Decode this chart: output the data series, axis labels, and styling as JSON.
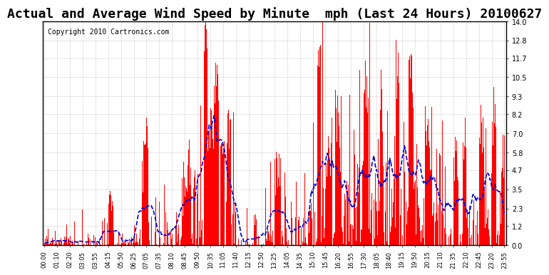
{
  "title": "Actual and Average Wind Speed by Minute  mph (Last 24 Hours) 20100627",
  "copyright": "Copyright 2010 Cartronics.com",
  "yticks": [
    0.0,
    1.2,
    2.3,
    3.5,
    4.7,
    5.8,
    7.0,
    8.2,
    9.3,
    10.5,
    11.7,
    12.8,
    14.0
  ],
  "ymax": 14.0,
  "ymin": 0.0,
  "bar_color": "#FF0000",
  "line_color": "#0000CC",
  "background_color": "#FFFFFF",
  "grid_color": "#AAAAAA",
  "title_fontsize": 13,
  "copyright_fontsize": 7
}
